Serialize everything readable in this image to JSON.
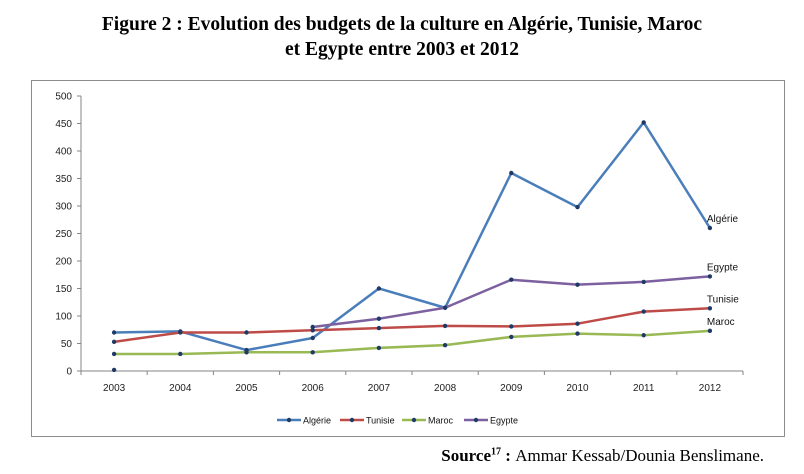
{
  "figure": {
    "title_line1": "Figure 2 : Evolution des budgets de la culture en Algérie, Tunisie, Maroc",
    "title_line2": "et Egypte entre 2003 et 2012"
  },
  "source": {
    "label": "Source",
    "note": "17",
    "separator": " : ",
    "text": "Ammar Kessab/Dounia Benslimane."
  },
  "chart_data": {
    "type": "line",
    "title": "",
    "xlabel": "",
    "ylabel": "",
    "ylim": [
      0,
      500
    ],
    "yticks": [
      0,
      50,
      100,
      150,
      200,
      250,
      300,
      350,
      400,
      450,
      500
    ],
    "categories": [
      "2003",
      "2004",
      "2005",
      "2006",
      "2007",
      "2008",
      "2009",
      "2010",
      "2011",
      "2012"
    ],
    "grid": false,
    "legend_position": "bottom",
    "series": [
      {
        "name": "Algérie",
        "color": "#4a7ebb",
        "values": [
          70,
          72,
          38,
          60,
          150,
          115,
          360,
          298,
          452,
          260
        ]
      },
      {
        "name": "Tunisie",
        "color": "#be4b48",
        "values": [
          53,
          70,
          70,
          74,
          78,
          82,
          81,
          86,
          108,
          114
        ]
      },
      {
        "name": "Maroc",
        "color": "#98b954",
        "values": [
          31,
          31,
          34,
          34,
          42,
          47,
          62,
          68,
          65,
          73
        ]
      },
      {
        "name": "Egypte",
        "color": "#7d60a0",
        "values": [
          2,
          null,
          null,
          80,
          95,
          115,
          166,
          157,
          162,
          172
        ]
      }
    ],
    "end_labels": [
      "Algérie",
      "Egypte",
      "Tunisie",
      "Maroc"
    ]
  }
}
